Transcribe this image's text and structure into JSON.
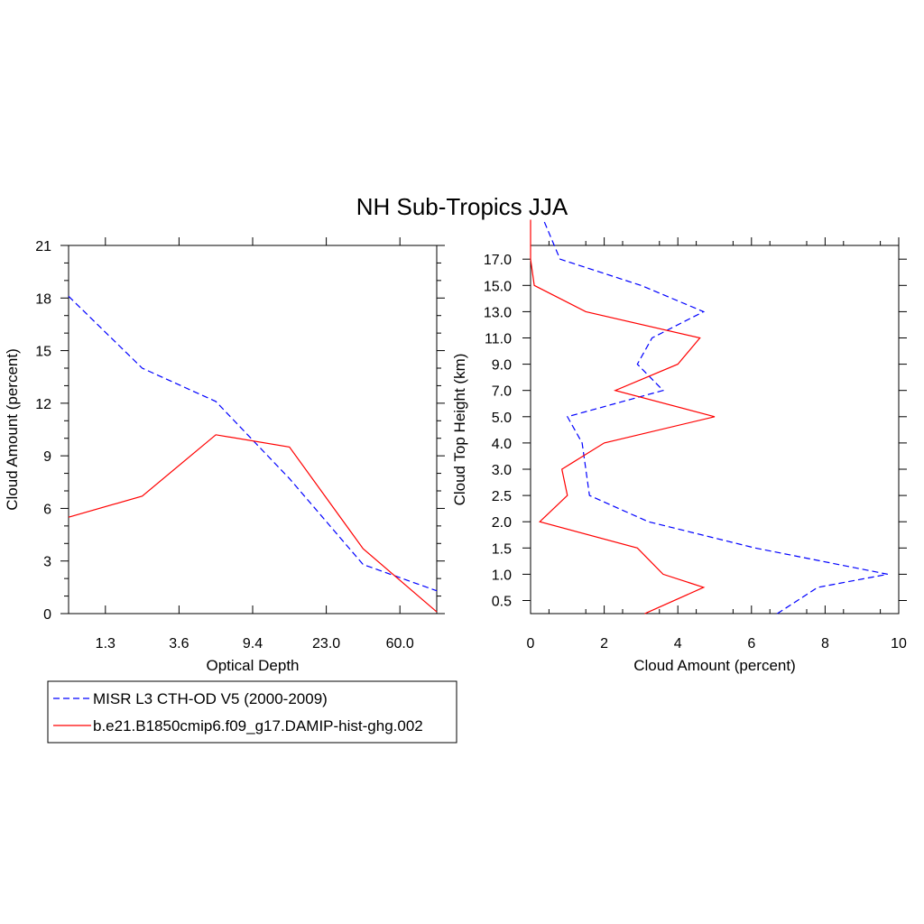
{
  "title": "NH Sub-Tropics JJA",
  "colors": {
    "obs": "#0000ff",
    "model": "#ff0000"
  },
  "legend": [
    {
      "label": "MISR L3 CTH-OD V5 (2000-2009)",
      "style": "dashed",
      "color": "#0000ff"
    },
    {
      "label": "b.e21.B1850cmip6.f09_g17.DAMIP-hist-ghg.002",
      "style": "solid",
      "color": "#ff0000"
    }
  ],
  "chart_data": [
    {
      "type": "line",
      "xlabel": "Optical Depth",
      "ylabel": "Cloud Amount (percent)",
      "x_tick_labels": [
        "1.3",
        "3.6",
        "9.4",
        "23.0",
        "60.0"
      ],
      "ylim": [
        0,
        21
      ],
      "y_ticks": [
        0,
        3,
        6,
        9,
        12,
        15,
        18,
        21
      ],
      "series": [
        {
          "name": "MISR L3 CTH-OD V5 (2000-2009)",
          "x": [
            0,
            1,
            2,
            3,
            4,
            5
          ],
          "values": [
            18.1,
            14.0,
            12.1,
            7.7,
            2.8,
            1.3
          ]
        },
        {
          "name": "b.e21.B1850cmip6.f09_g17.DAMIP-hist-ghg.002",
          "x": [
            0,
            1,
            2,
            3,
            4,
            5
          ],
          "values": [
            5.5,
            6.7,
            10.2,
            9.5,
            3.7,
            0.1
          ]
        }
      ]
    },
    {
      "type": "line",
      "xlabel": "Cloud Amount (percent)",
      "ylabel": "Cloud Top Height (km)",
      "xlim": [
        0,
        10
      ],
      "x_ticks": [
        0,
        2,
        4,
        6,
        8,
        10
      ],
      "y_tick_labels": [
        "0.5",
        "1.0",
        "1.5",
        "2.0",
        "2.5",
        "3.0",
        "4.0",
        "5.0",
        "7.0",
        "9.0",
        "11.0",
        "13.0",
        "15.0",
        "17.0"
      ],
      "series": [
        {
          "name": "MISR L3 CTH-OD V5 (2000-2009)",
          "level_index": [
            -0.5,
            0.5,
            1,
            2,
            3,
            4,
            5,
            6,
            7,
            8,
            9,
            10,
            11,
            12,
            13,
            14.5
          ],
          "values": [
            6.7,
            7.8,
            9.7,
            6.1,
            3.2,
            1.6,
            1.5,
            1.4,
            1.0,
            3.6,
            2.9,
            3.3,
            4.7,
            3.0,
            0.8,
            0.35
          ]
        },
        {
          "name": "b.e21.B1850cmip6.f09_g17.DAMIP-hist-ghg.002",
          "level_index": [
            -0.5,
            0.5,
            1,
            2,
            3,
            4,
            5,
            6,
            7,
            8,
            9,
            10,
            11,
            12,
            13,
            14.5
          ],
          "values": [
            3.1,
            4.7,
            3.6,
            2.9,
            0.25,
            1.0,
            0.85,
            2.0,
            5.0,
            2.3,
            4.0,
            4.6,
            1.5,
            0.1,
            0.0,
            0.0
          ]
        }
      ]
    }
  ]
}
